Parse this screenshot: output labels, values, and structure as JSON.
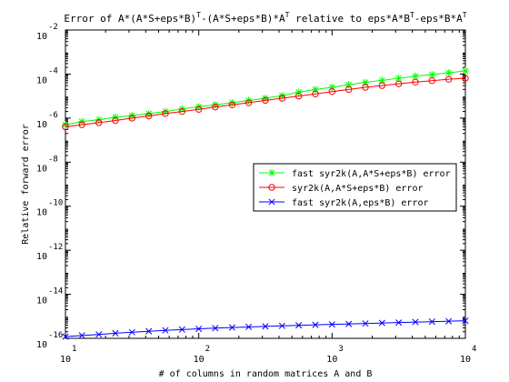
{
  "chart_data": {
    "type": "line",
    "title_parts": [
      {
        "text": "Error of A*(A*S+eps*B)",
        "sup": false
      },
      {
        "text": "T",
        "sup": true
      },
      {
        "text": "-(A*S+eps*B)*A",
        "sup": false
      },
      {
        "text": "T",
        "sup": true
      },
      {
        "text": " relative to eps*A*B",
        "sup": false
      },
      {
        "text": "T",
        "sup": true
      },
      {
        "text": "-eps*B*A",
        "sup": false
      },
      {
        "text": "T",
        "sup": true
      }
    ],
    "xlabel": "# of columns in random matrices A and B",
    "ylabel": "Relative forward error",
    "xscale": "log",
    "yscale": "log",
    "xlim": [
      10,
      10000
    ],
    "ylim": [
      1e-16,
      0.01
    ],
    "x_ticks": [
      {
        "base": "10",
        "exp": "1",
        "value": 10
      },
      {
        "base": "10",
        "exp": "2",
        "value": 100
      },
      {
        "base": "10",
        "exp": "3",
        "value": 1000
      },
      {
        "base": "10",
        "exp": "4",
        "value": 10000
      }
    ],
    "y_ticks": [
      {
        "base": "10",
        "exp": "-2",
        "value": 0.01
      },
      {
        "base": "10",
        "exp": "-4",
        "value": 0.0001
      },
      {
        "base": "10",
        "exp": "-6",
        "value": 1e-06
      },
      {
        "base": "10",
        "exp": "-8",
        "value": 1e-08
      },
      {
        "base": "10",
        "exp": "-10",
        "value": 1e-10
      },
      {
        "base": "10",
        "exp": "-12",
        "value": 1e-12
      },
      {
        "base": "10",
        "exp": "-14",
        "value": 1e-14
      },
      {
        "base": "10",
        "exp": "-16",
        "value": 1e-16
      }
    ],
    "grid": false,
    "legend_position": "right",
    "x": [
      10,
      13.3,
      17.8,
      23.7,
      31.6,
      42.2,
      56.2,
      75,
      100,
      133,
      178,
      237,
      316,
      422,
      562,
      750,
      1000,
      1334,
      1778,
      2371,
      3162,
      4217,
      5623,
      7499,
      10000
    ],
    "series": [
      {
        "name": "fast syr2k(A,A*S+eps*B) error",
        "color": "#00ff00",
        "marker": "star",
        "values": [
          5e-07,
          7e-07,
          8.5e-07,
          1.1e-06,
          1.3e-06,
          1.6e-06,
          2e-06,
          2.6e-06,
          3.3e-06,
          4e-06,
          5e-06,
          6.3e-06,
          8e-06,
          1.05e-05,
          1.5e-05,
          2e-05,
          2.5e-05,
          3.3e-05,
          4.2e-05,
          5.2e-05,
          6.5e-05,
          8e-05,
          9.5e-05,
          0.000115,
          0.00014
        ]
      },
      {
        "name": "syr2k(A,A*S+eps*B) error",
        "color": "#ff0000",
        "marker": "circle",
        "values": [
          4e-07,
          5e-07,
          6.2e-07,
          7.8e-07,
          1e-06,
          1.25e-06,
          1.6e-06,
          2e-06,
          2.5e-06,
          3.2e-06,
          4e-06,
          5e-06,
          6.4e-06,
          8e-06,
          1e-05,
          1.25e-05,
          1.6e-05,
          2e-05,
          2.5e-05,
          3e-05,
          3.6e-05,
          4.3e-05,
          5e-05,
          5.8e-05,
          6.5e-05
        ]
      },
      {
        "name": "fast syr2k(A,eps*B) error",
        "color": "#0000ff",
        "marker": "x",
        "values": [
          1.2e-16,
          1.35e-16,
          1.5e-16,
          1.7e-16,
          1.9e-16,
          2.1e-16,
          2.3e-16,
          2.5e-16,
          2.7e-16,
          2.9e-16,
          3.1e-16,
          3.3e-16,
          3.5e-16,
          3.7e-16,
          3.9e-16,
          4.1e-16,
          4.3e-16,
          4.5e-16,
          4.7e-16,
          5e-16,
          5.2e-16,
          5.5e-16,
          5.7e-16,
          6e-16,
          6.3e-16
        ]
      }
    ]
  }
}
